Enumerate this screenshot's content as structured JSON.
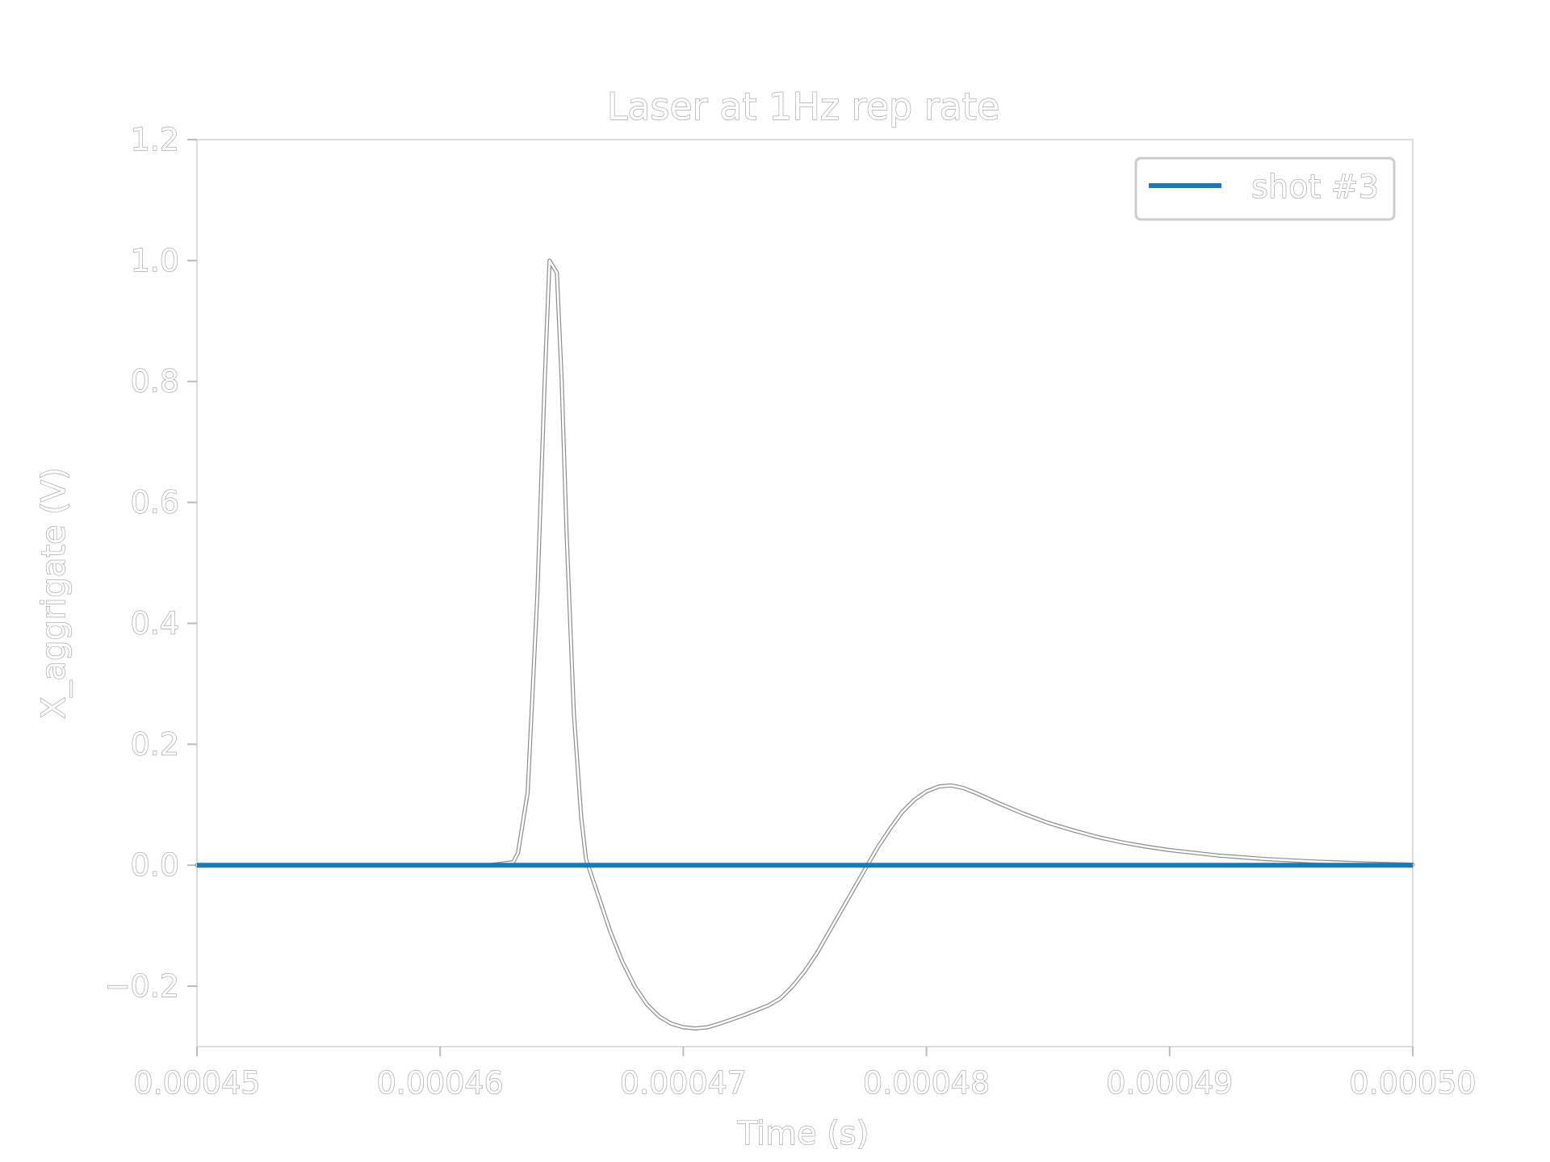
{
  "chart_data": {
    "type": "line",
    "title": "Laser at 1Hz rep rate",
    "xlabel": "Time (s)",
    "ylabel": "X_aggrigate (V)",
    "xlim": [
      0.00045,
      0.0005
    ],
    "ylim": [
      -0.3,
      1.2
    ],
    "xticks": [
      0.00045,
      0.00046,
      0.00047,
      0.00048,
      0.00049,
      0.0005
    ],
    "xtick_labels": [
      "0.00045",
      "0.00046",
      "0.00047",
      "0.00048",
      "0.00049",
      "0.00050"
    ],
    "yticks": [
      -0.2,
      0.0,
      0.2,
      0.4,
      0.6,
      0.8,
      1.0,
      1.2
    ],
    "ytick_labels": [
      "−0.2",
      "0.0",
      "0.2",
      "0.4",
      "0.6",
      "0.8",
      "1.0",
      "1.2"
    ],
    "grid": false,
    "legend_position": "top-right",
    "series": [
      {
        "name": "shot #3",
        "color": "#1f77b4",
        "style": "solid",
        "x": [
          0.00045,
          0.000455,
          0.00046,
          0.000465,
          0.00047,
          0.000475,
          0.00048,
          0.000485,
          0.00049,
          0.000495,
          0.0005
        ],
        "y": [
          0.0,
          0.0,
          0.0,
          0.0,
          0.0,
          0.0,
          0.0,
          0.0,
          0.0,
          0.0,
          0.0
        ]
      },
      {
        "name": "",
        "color": "#ffffff",
        "edge_color": "#8c8c8c",
        "style": "outlined",
        "x": [
          0.00045,
          0.000462,
          0.000463,
          0.0004632,
          0.0004636,
          0.000464,
          0.0004643,
          0.0004645,
          0.0004648,
          0.000465,
          0.0004652,
          0.0004655,
          0.0004658,
          0.000466,
          0.0004665,
          0.000467,
          0.0004675,
          0.000468,
          0.0004685,
          0.000469,
          0.0004695,
          0.00047,
          0.0004705,
          0.000471,
          0.0004715,
          0.000472,
          0.0004725,
          0.000473,
          0.0004735,
          0.000474,
          0.0004745,
          0.000475,
          0.0004755,
          0.000476,
          0.0004765,
          0.000477,
          0.0004775,
          0.000478,
          0.0004785,
          0.000479,
          0.0004795,
          0.00048,
          0.0004805,
          0.000481,
          0.0004815,
          0.000482,
          0.000483,
          0.000484,
          0.000485,
          0.000486,
          0.000487,
          0.000488,
          0.000489,
          0.00049,
          0.000492,
          0.000494,
          0.000496,
          0.000498,
          0.0005
        ],
        "y": [
          0.0,
          0.0,
          0.005,
          0.02,
          0.12,
          0.45,
          0.8,
          1.0,
          0.98,
          0.8,
          0.55,
          0.25,
          0.08,
          0.01,
          -0.05,
          -0.11,
          -0.16,
          -0.2,
          -0.23,
          -0.25,
          -0.262,
          -0.268,
          -0.27,
          -0.268,
          -0.262,
          -0.255,
          -0.248,
          -0.24,
          -0.232,
          -0.22,
          -0.2,
          -0.175,
          -0.145,
          -0.11,
          -0.075,
          -0.04,
          -0.005,
          0.03,
          0.06,
          0.088,
          0.108,
          0.122,
          0.13,
          0.132,
          0.128,
          0.12,
          0.102,
          0.085,
          0.07,
          0.058,
          0.047,
          0.038,
          0.031,
          0.025,
          0.016,
          0.01,
          0.006,
          0.003,
          0.001
        ]
      }
    ]
  }
}
